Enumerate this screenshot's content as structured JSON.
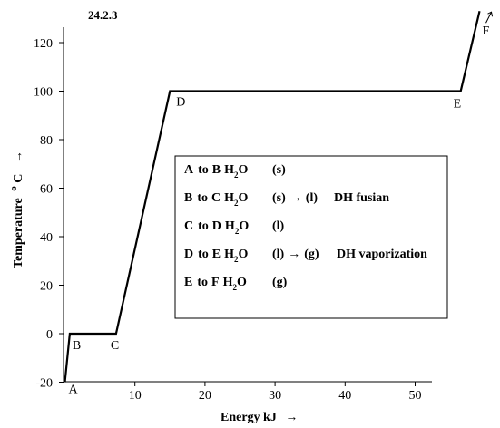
{
  "chart_data": {
    "type": "line",
    "id_label": "24.2.3",
    "xlabel": "Energy kJ",
    "ylabel": "Temperature",
    "ylabel_unit": "C",
    "ylabel_degree": "o",
    "arrow": "→",
    "xlim": [
      0,
      53
    ],
    "ylim": [
      -20,
      130
    ],
    "xticks": [
      10,
      20,
      30,
      40,
      50
    ],
    "yticks": [
      -20,
      0,
      20,
      40,
      60,
      80,
      100,
      120
    ],
    "grid": false,
    "series": [
      {
        "x": [
          0,
          0.7,
          7.3,
          15,
          56.5,
          59.2
        ],
        "y": [
          -20,
          0,
          0,
          100,
          100,
          133
        ]
      }
    ],
    "points": [
      {
        "name": "A",
        "x": 0,
        "y": -20
      },
      {
        "name": "B",
        "x": 0.7,
        "y": 0
      },
      {
        "name": "C",
        "x": 7.3,
        "y": 0
      },
      {
        "name": "D",
        "x": 15,
        "y": 100
      },
      {
        "name": "E",
        "x": 56.5,
        "y": 100
      },
      {
        "name": "F",
        "x": 59.2,
        "y": 133
      }
    ],
    "legend": [
      {
        "from": "A",
        "to_word": "to",
        "target": "B",
        "chem": "H",
        "sub": "2",
        "chem_end": "O",
        "state": "(s)",
        "arrow": "",
        "state2": "",
        "desc": ""
      },
      {
        "from": "B",
        "to_word": "to",
        "target": "C",
        "chem": "H",
        "sub": "2",
        "chem_end": "O",
        "state": "(s)",
        "arrow": "→",
        "state2": "(l)",
        "desc": "DH fusian"
      },
      {
        "from": "C",
        "to_word": "to",
        "target": "D",
        "chem": "H",
        "sub": "2",
        "chem_end": "O",
        "state": "(l)",
        "arrow": "",
        "state2": "",
        "desc": ""
      },
      {
        "from": "D",
        "to_word": "to",
        "target": "E",
        "chem": "H",
        "sub": "2",
        "chem_end": "O",
        "state": "(l)",
        "arrow": "→",
        "state2": "(g)",
        "desc": "DH vaporization"
      },
      {
        "from": "E",
        "to_word": "to",
        "target": "F",
        "chem": "H",
        "sub": "2",
        "chem_end": "O",
        "state": "(g)",
        "arrow": "",
        "state2": "",
        "desc": ""
      }
    ]
  }
}
